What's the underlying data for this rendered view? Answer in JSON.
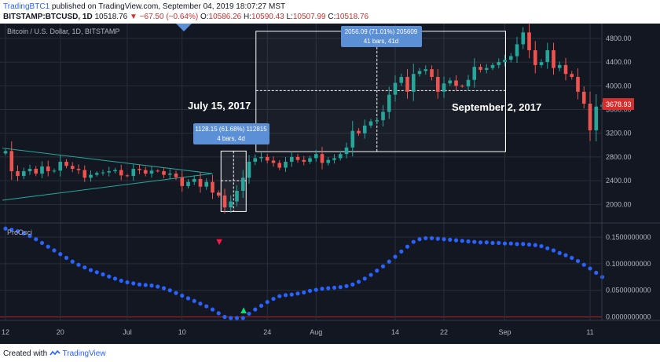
{
  "header": {
    "author": "TradingBTC1",
    "published_text": "published on TradingView.com, September 04, 2019 18:07:27 MST",
    "symbol": "BITSTAMP:BTCUSD, 1D",
    "last": "10518.76",
    "change_arrow": "▼",
    "change": "−67.50 (−0.64%)",
    "ohlc": [
      {
        "label": "O:",
        "value": "10586.26"
      },
      {
        "label": "H:",
        "value": "10590.43"
      },
      {
        "label": "L:",
        "value": "10507.99"
      },
      {
        "label": "C:",
        "value": "10518.76"
      }
    ]
  },
  "footer": {
    "created_with": "Created with",
    "brand": "TradingView"
  },
  "colors": {
    "background": "#131722",
    "up": "#26a69a",
    "down": "#ef5350",
    "grid": "#2a2e39",
    "text": "#b2b5be",
    "indicator": "#2962ff",
    "price_tag": "#d32f2f",
    "measure_label": "#5b8fd6"
  },
  "chart_data": [
    {
      "type": "candlestick",
      "title": "Bitcoin / U.S. Dollar, 1D, BITSTAMP",
      "x_ticks": [
        "12",
        "20",
        "Jul",
        "10",
        "24",
        "Aug",
        "14",
        "22",
        "Sep",
        "11"
      ],
      "y_ticks": [
        "4800.00",
        "4400.00",
        "4000.00",
        "3600.00",
        "3200.00",
        "2800.00",
        "2400.00",
        "2000.00"
      ],
      "ylim": [
        1700,
        5050
      ],
      "last_price": "3678.93",
      "close": [
        2900,
        2560,
        2480,
        2560,
        2600,
        2520,
        2640,
        2560,
        2570,
        2720,
        2650,
        2600,
        2580,
        2450,
        2500,
        2530,
        2540,
        2560,
        2580,
        2490,
        2480,
        2600,
        2580,
        2520,
        2570,
        2560,
        2500,
        2520,
        2460,
        2310,
        2380,
        2430,
        2300,
        2380,
        2200,
        2150,
        1950,
        2050,
        2230,
        2450,
        2720,
        2780,
        2800,
        2740,
        2700,
        2620,
        2720,
        2800,
        2750,
        2720,
        2780,
        2850,
        2700,
        2750,
        2780,
        2850,
        2960,
        3240,
        3200,
        3330,
        3400,
        3420,
        3560,
        3850,
        4050,
        4150,
        3900,
        4200,
        4250,
        4280,
        4150,
        3900,
        4040,
        4090,
        4000,
        3990,
        4100,
        4320,
        4270,
        4300,
        4350,
        4400,
        4440,
        4500,
        4700,
        4900,
        4600,
        4350,
        4400,
        4600,
        4300,
        4350,
        4200,
        4150,
        3900,
        3700,
        3250,
        3650,
        3679
      ],
      "annotations": [
        {
          "text": "July 15, 2017"
        },
        {
          "text": "September 2, 2017"
        },
        {
          "line1": "1128.15 (61.68%) 112815",
          "line2": "4 bars, 4d"
        },
        {
          "line1": "2056.09 (71.01%) 205609",
          "line2": "41 bars, 41d"
        }
      ]
    },
    {
      "type": "scatter",
      "title": "ProOsci",
      "y_ticks": [
        "0.1500000000",
        "0.1000000000",
        "0.0500000000",
        "0.0000000000"
      ],
      "ylim": [
        -0.005,
        0.175
      ],
      "values": [
        0.166,
        0.164,
        0.161,
        0.157,
        0.152,
        0.146,
        0.139,
        0.132,
        0.125,
        0.118,
        0.111,
        0.104,
        0.098,
        0.093,
        0.088,
        0.084,
        0.08,
        0.076,
        0.072,
        0.068,
        0.065,
        0.063,
        0.061,
        0.06,
        0.059,
        0.057,
        0.054,
        0.05,
        0.045,
        0.04,
        0.035,
        0.03,
        0.025,
        0.02,
        0.014,
        0.007,
        0.0,
        -0.002,
        -0.002,
        -0.002,
        0.006,
        0.014,
        0.021,
        0.028,
        0.034,
        0.039,
        0.041,
        0.042,
        0.044,
        0.046,
        0.049,
        0.051,
        0.053,
        0.054,
        0.055,
        0.056,
        0.058,
        0.061,
        0.066,
        0.072,
        0.079,
        0.087,
        0.095,
        0.104,
        0.113,
        0.123,
        0.132,
        0.141,
        0.146,
        0.148,
        0.148,
        0.147,
        0.146,
        0.145,
        0.144,
        0.143,
        0.142,
        0.141,
        0.14,
        0.14,
        0.139,
        0.139,
        0.138,
        0.138,
        0.137,
        0.137,
        0.136,
        0.135,
        0.133,
        0.129,
        0.125,
        0.12,
        0.116,
        0.111,
        0.105,
        0.098,
        0.091,
        0.083,
        0.075
      ],
      "signals": [
        {
          "type": "sell",
          "marker": "▼"
        },
        {
          "type": "buy",
          "marker": "▲"
        }
      ]
    }
  ]
}
